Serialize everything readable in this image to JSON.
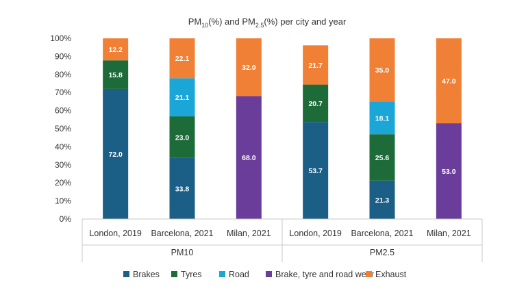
{
  "chart_data": {
    "type": "bar",
    "stacked": true,
    "title": {
      "prefix": "PM",
      "sub1": "10",
      "mid": "(%) and PM",
      "sub2": "2.5",
      "suffix": "(%) per city and year"
    },
    "yticks": [
      "0%",
      "10%",
      "20%",
      "30%",
      "40%",
      "50%",
      "60%",
      "70%",
      "80%",
      "90%",
      "100%"
    ],
    "ylim": [
      0,
      100
    ],
    "groups": [
      {
        "label": "PM10",
        "categories": [
          "London, 2019",
          "Barcelona, 2021",
          "Milan, 2021"
        ]
      },
      {
        "label": "PM2.5",
        "categories": [
          "London, 2019",
          "Barcelona, 2021",
          "Milan, 2021"
        ]
      }
    ],
    "series": [
      {
        "name": "Brakes",
        "color": "#1b5e86",
        "values": [
          72.0,
          33.8,
          null,
          53.7,
          21.3,
          null
        ]
      },
      {
        "name": "Tyres",
        "color": "#1e6b3a",
        "values": [
          15.8,
          23.0,
          null,
          20.7,
          25.6,
          null
        ]
      },
      {
        "name": "Road",
        "color": "#1ba6d8",
        "values": [
          null,
          21.1,
          null,
          null,
          18.1,
          null
        ]
      },
      {
        "name": "Brake, tyre and road wear",
        "color": "#6a3d9a",
        "values": [
          null,
          null,
          68.0,
          null,
          null,
          53.0
        ]
      },
      {
        "name": "Exhaust",
        "color": "#f08035",
        "values": [
          12.2,
          22.1,
          32.0,
          21.7,
          35.0,
          47.0
        ]
      }
    ]
  }
}
